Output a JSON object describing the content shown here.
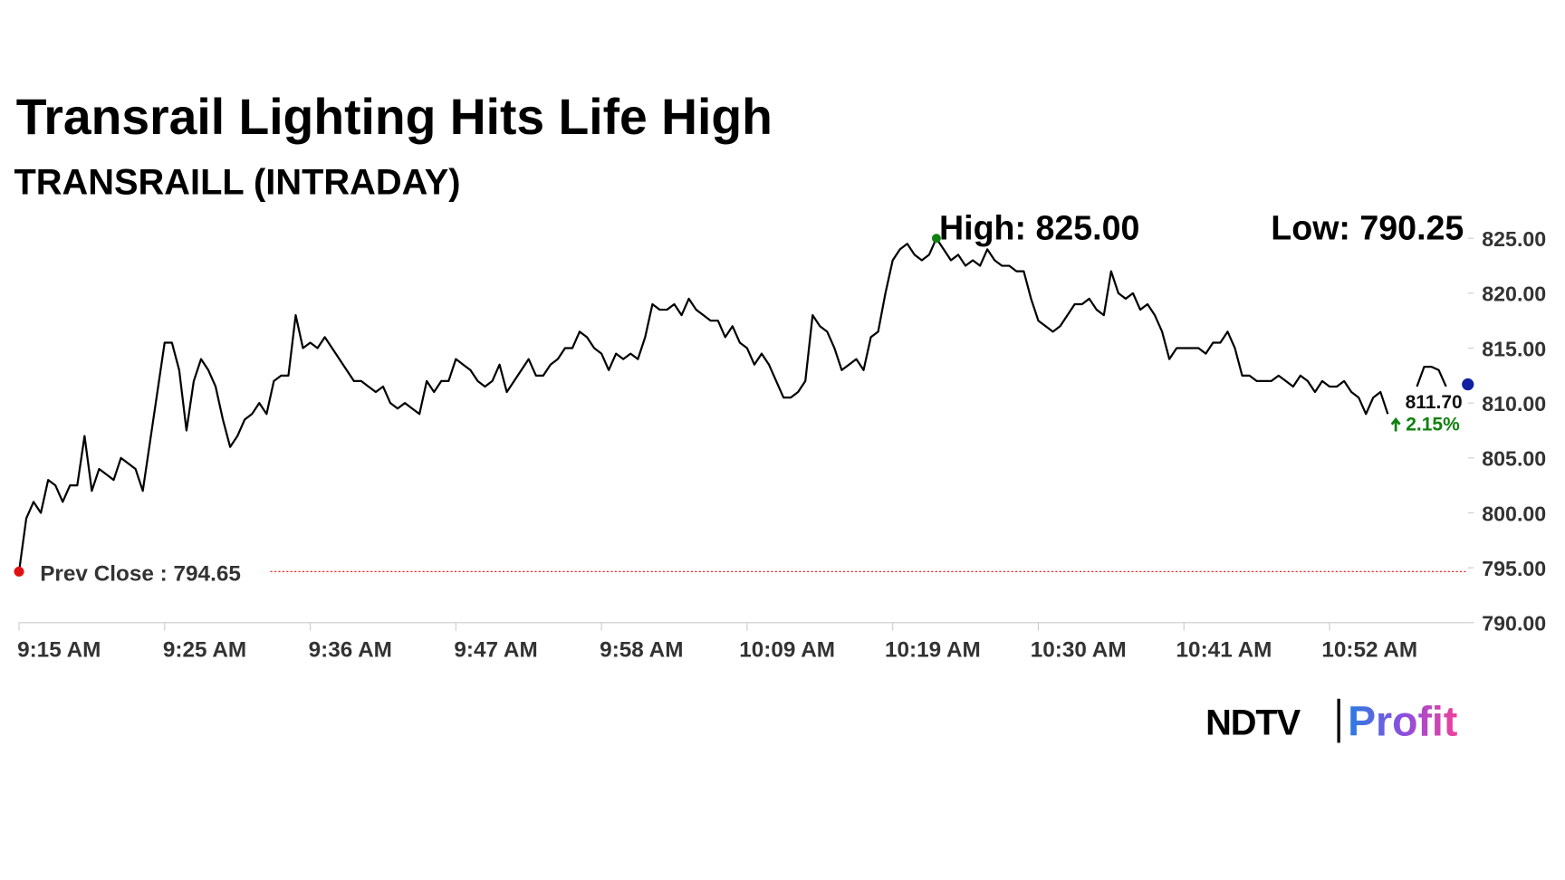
{
  "chart_data": {
    "type": "line",
    "title": "Transrail Lighting Hits Life High",
    "subtitle": "TRANSRAILL (INTRADAY)",
    "high_label": "High: 825.00",
    "low_label": "Low: 790.25",
    "prev_close": 794.65,
    "prev_close_label": "Prev Close : 794.65",
    "last": 811.7,
    "last_label": "811.70",
    "change_label": "2.15%",
    "categories": [
      "9:15 AM",
      null,
      null,
      null,
      null,
      null,
      null,
      null,
      null,
      null,
      null,
      null,
      null,
      null,
      null,
      null,
      null,
      null,
      null,
      null,
      "9:25 AM",
      null,
      null,
      null,
      null,
      null,
      null,
      null,
      null,
      null,
      null,
      null,
      null,
      null,
      null,
      null,
      null,
      null,
      null,
      null,
      "9:36 AM",
      null,
      null,
      null,
      null,
      null,
      null,
      null,
      null,
      null,
      null,
      null,
      null,
      null,
      null,
      null,
      null,
      null,
      null,
      null,
      "9:47 AM",
      null,
      null,
      null,
      null,
      null,
      null,
      null,
      null,
      null,
      null,
      null,
      null,
      null,
      null,
      null,
      null,
      null,
      null,
      null,
      "9:58 AM",
      null,
      null,
      null,
      null,
      null,
      null,
      null,
      null,
      null,
      null,
      null,
      null,
      null,
      null,
      null,
      null,
      null,
      null,
      null,
      "10:09 AM",
      null,
      null,
      null,
      null,
      null,
      null,
      null,
      null,
      null,
      null,
      null,
      null,
      null,
      null,
      null,
      null,
      null,
      null,
      null,
      "10:19 AM",
      null,
      null,
      null,
      null,
      null,
      null,
      null,
      null,
      null,
      null,
      null,
      null,
      null,
      null,
      null,
      null,
      null,
      null,
      null,
      "10:30 AM",
      null,
      null,
      null,
      null,
      null,
      null,
      null,
      null,
      null,
      null,
      null,
      null,
      null,
      null,
      null,
      null,
      null,
      null,
      null,
      "10:41 AM",
      null,
      null,
      null,
      null,
      null,
      null,
      null,
      null,
      null,
      null,
      null,
      null,
      null,
      null,
      null,
      null,
      null,
      null,
      null,
      "10:52 AM",
      null,
      null,
      null,
      null,
      null,
      null,
      null,
      null,
      null,
      null,
      null,
      null,
      null,
      null,
      null,
      null,
      null,
      null,
      null
    ],
    "series": [
      {
        "color": "#000000",
        "values": [
          794.65,
          799.5,
          801,
          800,
          803,
          802.5,
          801,
          802.5,
          802.5,
          807,
          802,
          804,
          803.5,
          803,
          805,
          804.5,
          804,
          802,
          806.5,
          811,
          815.5,
          815.5,
          813,
          807.5,
          812,
          814,
          813,
          811.5,
          808.5,
          806,
          807,
          808.5,
          809,
          810,
          809,
          812,
          812.5,
          812.5,
          818,
          815,
          815.5,
          815,
          816,
          815,
          814,
          813,
          812,
          812,
          811.5,
          811,
          811.5,
          810,
          809.5,
          810,
          809.5,
          809,
          812,
          811,
          812,
          812,
          814,
          813.5,
          813,
          812,
          811.5,
          812,
          813.5,
          811,
          812,
          813,
          814,
          812.5,
          812.5,
          813.5,
          814,
          815,
          815,
          816.5,
          816,
          815,
          814.5,
          813,
          814.5,
          814,
          814.5,
          814,
          816,
          819,
          818.5,
          818.5,
          819,
          818,
          819.5,
          818.5,
          818,
          817.5,
          817.5,
          816,
          817,
          815.5,
          815,
          813.5,
          814.5,
          813.5,
          812,
          810.5,
          810.5,
          811,
          812,
          818,
          817,
          816.5,
          815,
          813,
          813.5,
          814,
          813,
          816,
          816.5,
          820,
          823,
          824,
          824.5,
          823.5,
          823,
          823.5,
          825,
          824,
          823,
          823.5,
          822.5,
          823,
          822.5,
          824,
          823,
          822.5,
          822.5,
          822,
          822,
          819.5,
          817.5,
          817,
          816.5,
          817,
          818,
          819,
          819,
          819.5,
          818.5,
          818,
          822,
          820,
          819.5,
          820,
          818.5,
          819,
          818,
          816.5,
          814,
          815,
          815,
          815,
          815,
          814.5,
          815.5,
          815.5,
          816.5,
          815,
          812.5,
          812.5,
          812,
          812,
          812,
          812.5,
          812,
          811.5,
          812.5,
          812,
          811,
          812,
          811.5,
          811.5,
          812,
          811,
          810.5,
          809,
          810.5,
          811,
          809,
          null,
          null,
          null,
          811.5,
          813.3,
          813.3,
          813,
          811.5,
          null,
          null,
          null
        ]
      }
    ],
    "ylim": [
      790,
      825
    ],
    "yticks": [
      {
        "value": 790,
        "label": "790.00"
      },
      {
        "value": 795,
        "label": "795.00"
      },
      {
        "value": 800,
        "label": "800.00"
      },
      {
        "value": 805,
        "label": "805.00"
      },
      {
        "value": 810,
        "label": "810.00"
      },
      {
        "value": 815,
        "label": "815.00"
      },
      {
        "value": 820,
        "label": "820.00"
      },
      {
        "value": 825,
        "label": "825.00"
      }
    ],
    "high_color": "#108010",
    "prev_close_color": "#e01010",
    "last_color": "#1020a0",
    "change_color": "#108010"
  },
  "logo": {
    "left": "NDTV",
    "right": "Profit"
  }
}
